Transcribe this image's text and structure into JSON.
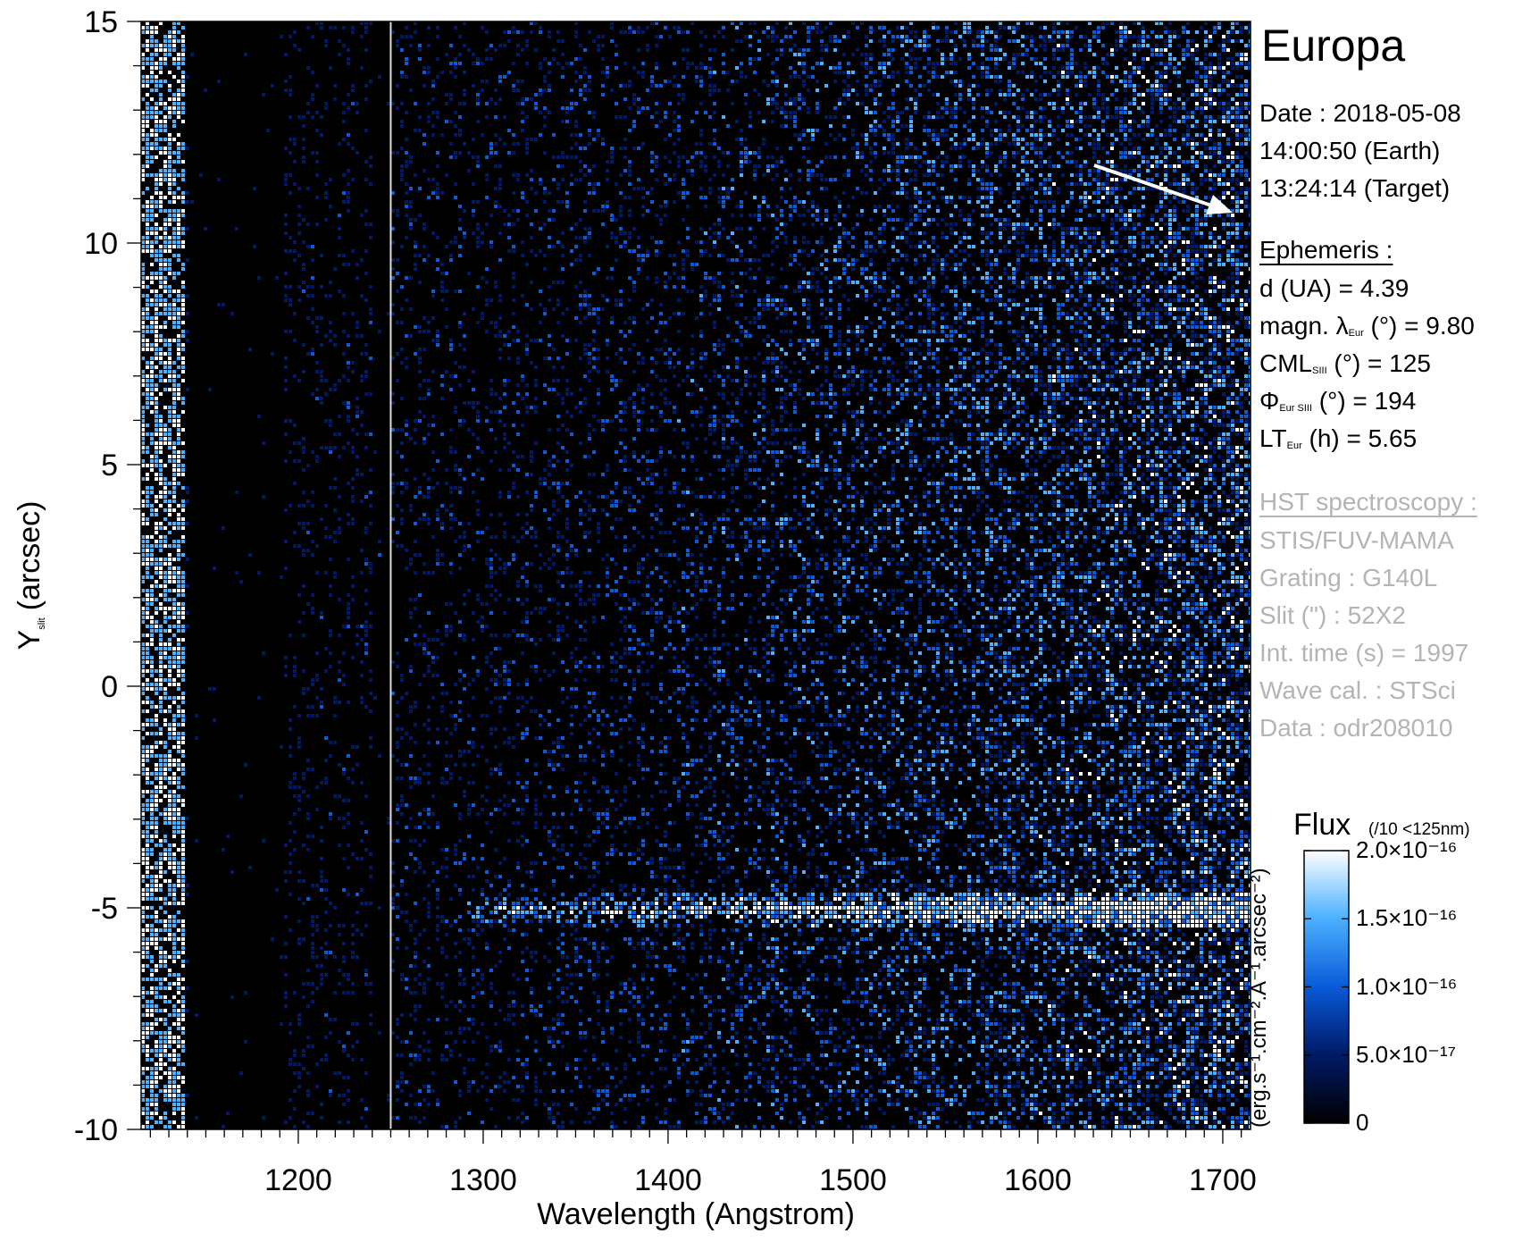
{
  "chart_data": {
    "type": "heatmap",
    "title": "Europa",
    "xlabel": "Wavelength (Angstrom)",
    "ylabel": "Y",
    "ylabel_sub": "slit",
    "ylabel_unit": "(arcsec)",
    "xlim": [
      1115,
      1715
    ],
    "ylim": [
      -10,
      15
    ],
    "x_ticks": [
      "1200",
      "1300",
      "1400",
      "1500",
      "1600",
      "1700"
    ],
    "x_tick_values": [
      1200,
      1300,
      1400,
      1500,
      1600,
      1700
    ],
    "y_ticks": [
      "-10",
      "-5",
      "0",
      "5",
      "10",
      "15"
    ],
    "y_tick_values": [
      -10,
      -5,
      0,
      5,
      10,
      15
    ],
    "features": {
      "emission_band_y": -5,
      "vertical_line_x": 1250,
      "dark_columns_x": [
        [
          1140,
          1190
        ],
        [
          1240,
          1250
        ]
      ]
    },
    "colorbar": {
      "title": "Flux",
      "note": "(/10 <125nm)",
      "unit": "(erg.s⁻¹.cm⁻².A⁻¹.arcsec⁻²)",
      "range": [
        0,
        2e-16
      ],
      "ticks": [
        "2.0×10⁻¹⁶",
        "1.5×10⁻¹⁶",
        "1.0×10⁻¹⁶",
        "5.0×10⁻¹⁷",
        "0"
      ],
      "tick_values": [
        2e-16,
        1.5e-16,
        1e-16,
        5e-17,
        0
      ],
      "colors": [
        "#000000",
        "#001a66",
        "#0a5ad9",
        "#4ab0ff",
        "#ffffff"
      ]
    }
  },
  "info": {
    "date": "Date : 2018-05-08",
    "earth_time": "14:00:50 (Earth)",
    "target_time": "13:24:14 (Target)",
    "ephemeris_header": "Ephemeris :",
    "distance": "d (UA)     = 4.39",
    "magn_pre": "magn. λ",
    "magn_sub": "Eur",
    "magn_post": " (°)  = 9.80",
    "cml_pre": "CML",
    "cml_sub": "SIII",
    "cml_post": " (°) = 125",
    "phi_pre": "Φ",
    "phi_sub": "Eur SIII",
    "phi_post": " (°) = 194",
    "lt_pre": "LT",
    "lt_sub": "Eur",
    "lt_post": " (h) = 5.65"
  },
  "hst": {
    "header": "HST spectroscopy :",
    "instrument": "STIS/FUV-MAMA",
    "grating": "Grating : G140L",
    "slit": "Slit (\") : 52X2",
    "int_time": "Int. time (s) = 1997",
    "wave_cal": "Wave cal. : STSci",
    "data": "Data : odr208010"
  }
}
